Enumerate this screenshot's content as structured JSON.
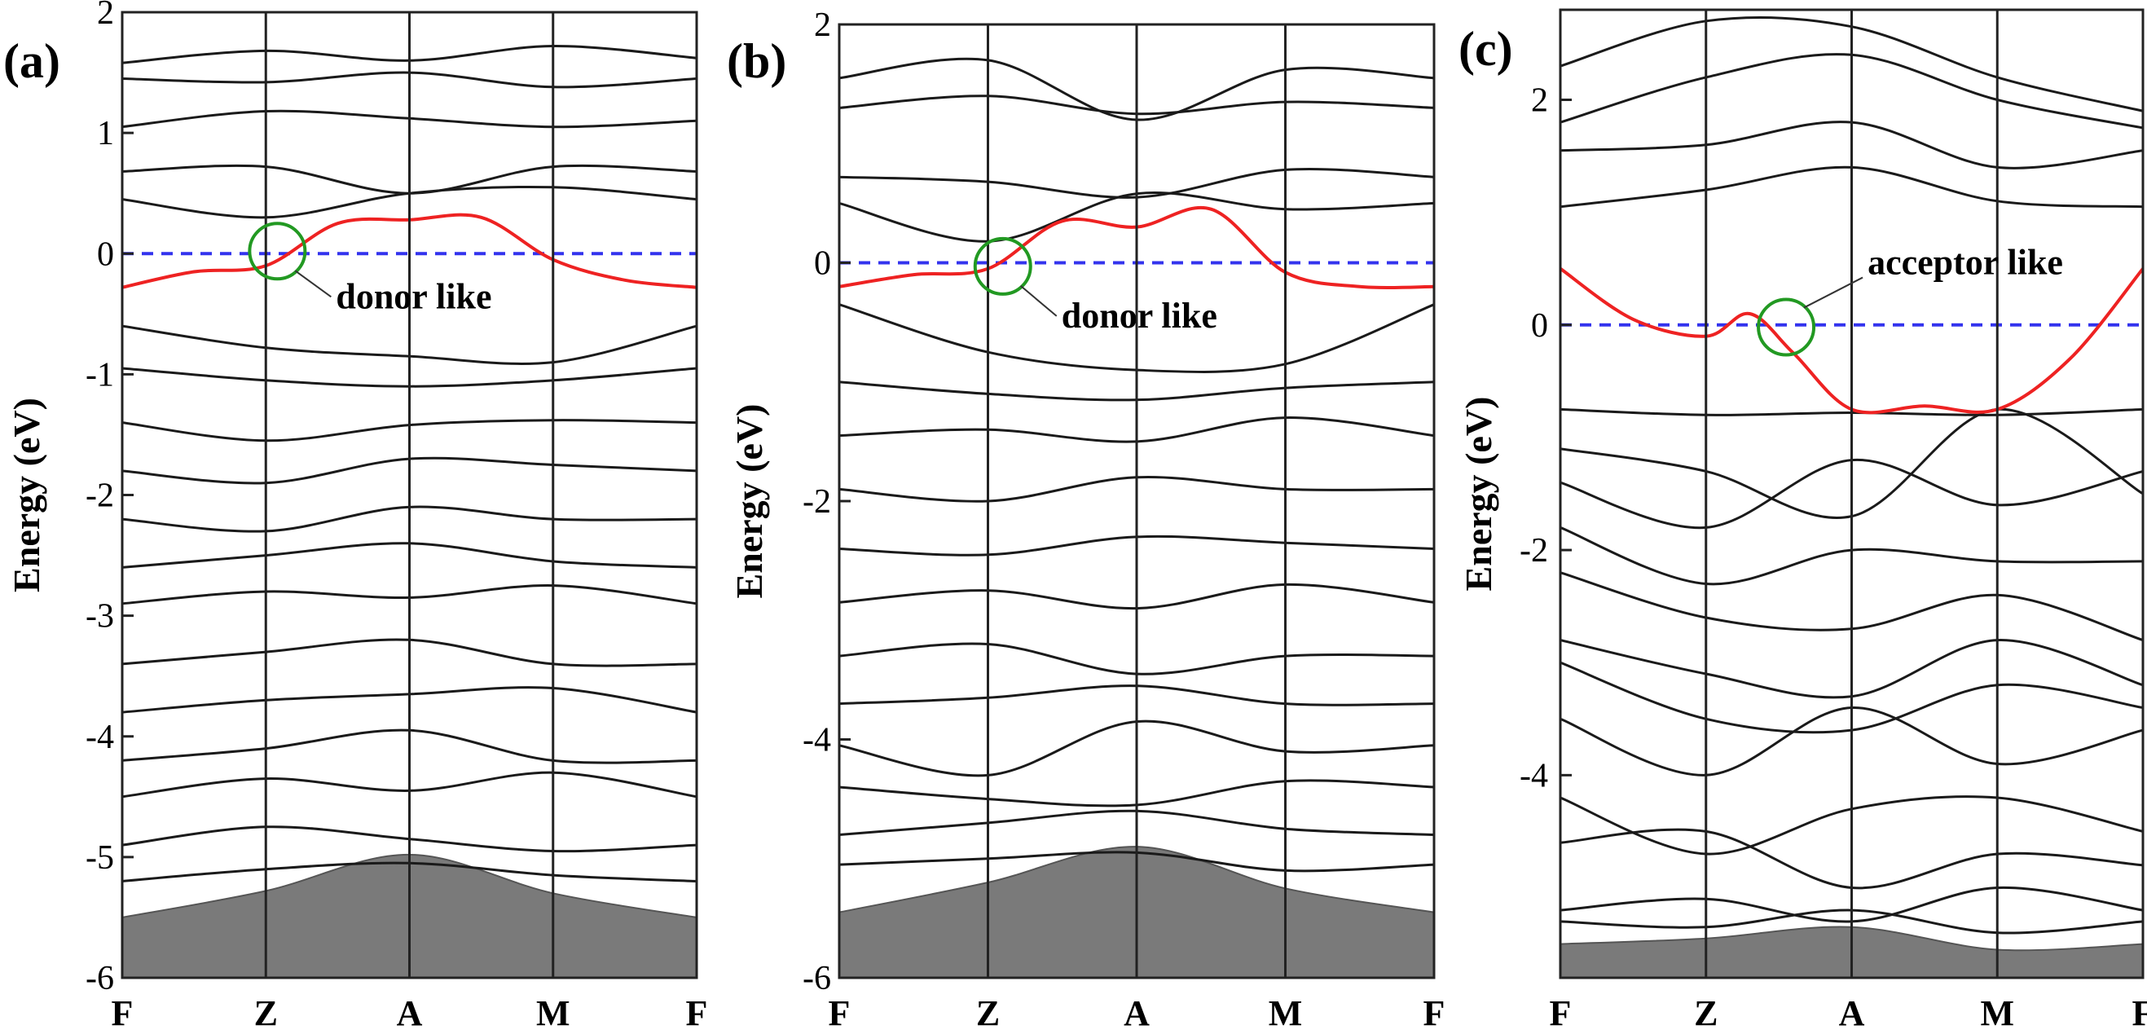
{
  "chart_data": [
    {
      "type": "line",
      "panel_label": "(a)",
      "ylabel": "Energy (eV)",
      "ylim": [
        -6,
        2
      ],
      "yticks": [
        -6,
        -5,
        -4,
        -3,
        -2,
        -1,
        0,
        1,
        2
      ],
      "ytick_labels": [
        "-6",
        "-5",
        "-4",
        "-3",
        "-2",
        "-1",
        "0",
        "1",
        "2"
      ],
      "k_points": [
        "F",
        "Z",
        "A",
        "M",
        "F"
      ],
      "k_positions": [
        0,
        1,
        2,
        3,
        4
      ],
      "fermi_level": 0,
      "fermi_line_color": "#3333ee",
      "defect_band_color": "#ee2222",
      "circle_color": "#229922",
      "annotation": "donor like",
      "circle_at": [
        1.08,
        0.02
      ],
      "defect_band": {
        "x": [
          0,
          0.5,
          1,
          1.5,
          2,
          2.5,
          3,
          3.5,
          4
        ],
        "y": [
          -0.28,
          -0.15,
          -0.1,
          0.25,
          0.28,
          0.3,
          -0.05,
          -0.22,
          -0.28
        ]
      },
      "shaded_region_top": {
        "x": [
          0,
          1,
          2,
          3,
          4
        ],
        "y": [
          -5.5,
          -5.28,
          -4.98,
          -5.3,
          -5.5
        ]
      },
      "bands": [
        [
          1.58,
          1.68,
          1.6,
          1.72,
          1.62
        ],
        [
          1.45,
          1.42,
          1.5,
          1.38,
          1.45
        ],
        [
          1.05,
          1.18,
          1.12,
          1.05,
          1.1
        ],
        [
          0.68,
          0.72,
          0.5,
          0.72,
          0.68
        ],
        [
          0.45,
          0.3,
          0.5,
          0.55,
          0.45
        ],
        [
          -0.6,
          -0.78,
          -0.85,
          -0.9,
          -0.6
        ],
        [
          -0.95,
          -1.05,
          -1.1,
          -1.05,
          -0.95
        ],
        [
          -1.4,
          -1.55,
          -1.42,
          -1.38,
          -1.4
        ],
        [
          -1.8,
          -1.9,
          -1.7,
          -1.75,
          -1.8
        ],
        [
          -2.2,
          -2.3,
          -2.1,
          -2.2,
          -2.2
        ],
        [
          -2.6,
          -2.5,
          -2.4,
          -2.55,
          -2.6
        ],
        [
          -2.9,
          -2.8,
          -2.85,
          -2.75,
          -2.9
        ],
        [
          -3.4,
          -3.3,
          -3.2,
          -3.4,
          -3.4
        ],
        [
          -3.8,
          -3.7,
          -3.65,
          -3.6,
          -3.8
        ],
        [
          -4.2,
          -4.1,
          -3.95,
          -4.2,
          -4.2
        ],
        [
          -4.5,
          -4.35,
          -4.45,
          -4.3,
          -4.5
        ],
        [
          -4.9,
          -4.75,
          -4.85,
          -4.95,
          -4.9
        ],
        [
          -5.2,
          -5.1,
          -5.05,
          -5.15,
          -5.2
        ]
      ]
    },
    {
      "type": "line",
      "panel_label": "(b)",
      "ylabel": "Energy (eV)",
      "ylim": [
        -6,
        2
      ],
      "yticks": [
        -6,
        -4,
        -2,
        0,
        2
      ],
      "ytick_labels": [
        "-6",
        "-4",
        "-2",
        "0",
        "2"
      ],
      "k_points": [
        "F",
        "Z",
        "A",
        "M",
        "F"
      ],
      "k_positions": [
        0,
        1,
        2,
        3,
        4
      ],
      "fermi_level": 0,
      "fermi_line_color": "#3333ee",
      "defect_band_color": "#ee2222",
      "circle_color": "#229922",
      "annotation": "donor like",
      "circle_at": [
        1.1,
        -0.03
      ],
      "defect_band": {
        "x": [
          0,
          0.5,
          1,
          1.5,
          2,
          2.5,
          3,
          3.5,
          4
        ],
        "y": [
          -0.2,
          -0.1,
          -0.05,
          0.35,
          0.3,
          0.45,
          -0.08,
          -0.2,
          -0.2
        ]
      },
      "shaded_region_top": {
        "x": [
          0,
          1,
          2,
          3,
          4
        ],
        "y": [
          -5.45,
          -5.2,
          -4.9,
          -5.25,
          -5.45
        ]
      },
      "bands": [
        [
          1.55,
          1.7,
          1.2,
          1.62,
          1.55
        ],
        [
          1.3,
          1.4,
          1.25,
          1.35,
          1.3
        ],
        [
          0.72,
          0.68,
          0.55,
          0.78,
          0.72
        ],
        [
          0.5,
          0.18,
          0.58,
          0.45,
          0.5
        ],
        [
          -0.35,
          -0.75,
          -0.9,
          -0.85,
          -0.35
        ],
        [
          -1.0,
          -1.1,
          -1.15,
          -1.05,
          -1.0
        ],
        [
          -1.45,
          -1.4,
          -1.5,
          -1.3,
          -1.45
        ],
        [
          -1.9,
          -2.0,
          -1.8,
          -1.9,
          -1.9
        ],
        [
          -2.4,
          -2.45,
          -2.3,
          -2.35,
          -2.4
        ],
        [
          -2.85,
          -2.75,
          -2.9,
          -2.7,
          -2.85
        ],
        [
          -3.3,
          -3.2,
          -3.45,
          -3.3,
          -3.3
        ],
        [
          -3.7,
          -3.65,
          -3.55,
          -3.7,
          -3.7
        ],
        [
          -4.05,
          -4.3,
          -3.85,
          -4.1,
          -4.05
        ],
        [
          -4.4,
          -4.5,
          -4.55,
          -4.35,
          -4.4
        ],
        [
          -4.8,
          -4.7,
          -4.6,
          -4.75,
          -4.8
        ],
        [
          -5.05,
          -5.0,
          -4.95,
          -5.1,
          -5.05
        ]
      ]
    },
    {
      "type": "line",
      "panel_label": "(c)",
      "ylabel": "Energy (eV)",
      "ylim": [
        -5.8,
        2.8
      ],
      "yticks": [
        -4,
        -2,
        0,
        2
      ],
      "ytick_labels": [
        "-4",
        "-2",
        "0",
        "2"
      ],
      "k_points": [
        "F",
        "Z",
        "A",
        "M",
        "F"
      ],
      "k_positions": [
        0,
        1,
        2,
        3,
        4
      ],
      "fermi_level": 0,
      "fermi_line_color": "#3333ee",
      "defect_band_color": "#ee2222",
      "circle_color": "#229922",
      "annotation": "acceptor like",
      "circle_at": [
        1.55,
        -0.02
      ],
      "defect_band": {
        "x": [
          0,
          0.5,
          1,
          1.3,
          1.6,
          2,
          2.5,
          3,
          3.5,
          4
        ],
        "y": [
          0.5,
          0.05,
          -0.1,
          0.1,
          -0.25,
          -0.75,
          -0.72,
          -0.75,
          -0.3,
          0.5
        ]
      },
      "shaded_region_top": {
        "x": [
          0,
          1,
          2,
          3,
          4
        ],
        "y": [
          -5.5,
          -5.45,
          -5.35,
          -5.55,
          -5.5
        ]
      },
      "bands": [
        [
          2.3,
          2.7,
          2.65,
          2.2,
          1.9
        ],
        [
          1.8,
          2.2,
          2.4,
          2.0,
          1.75
        ],
        [
          1.55,
          1.6,
          1.8,
          1.4,
          1.55
        ],
        [
          1.05,
          1.2,
          1.4,
          1.1,
          1.05
        ],
        [
          -0.75,
          -0.8,
          -0.78,
          -0.8,
          -0.75
        ],
        [
          -1.1,
          -1.3,
          -1.7,
          -0.75,
          -1.5
        ],
        [
          -1.4,
          -1.8,
          -1.2,
          -1.6,
          -1.3
        ],
        [
          -1.8,
          -2.3,
          -2.0,
          -2.1,
          -2.1
        ],
        [
          -2.2,
          -2.6,
          -2.7,
          -2.4,
          -2.8
        ],
        [
          -2.8,
          -3.1,
          -3.3,
          -2.8,
          -3.2
        ],
        [
          -3.0,
          -3.5,
          -3.6,
          -3.2,
          -3.4
        ],
        [
          -3.5,
          -4.0,
          -3.4,
          -3.9,
          -3.6
        ],
        [
          -4.2,
          -4.7,
          -4.3,
          -4.2,
          -4.5
        ],
        [
          -4.6,
          -4.5,
          -5.0,
          -4.7,
          -4.8
        ],
        [
          -5.2,
          -5.1,
          -5.3,
          -5.0,
          -5.2
        ],
        [
          -5.3,
          -5.35,
          -5.2,
          -5.4,
          -5.3
        ]
      ]
    }
  ]
}
